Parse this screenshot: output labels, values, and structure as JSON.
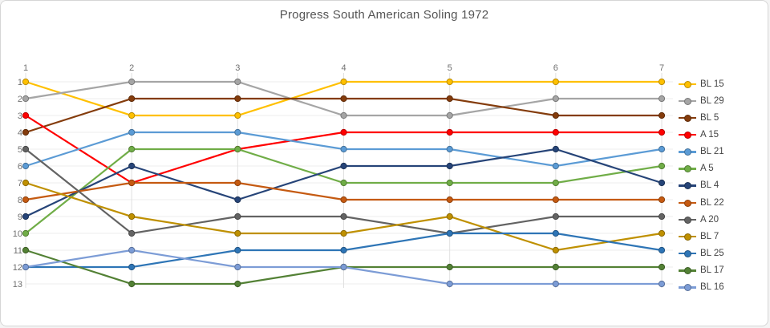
{
  "card": {
    "background": "#ffffff",
    "border_color": "#d6d6d6"
  },
  "chart_data": {
    "type": "line",
    "subtype": "bump-rank-progression",
    "title": "Progress South American Soling 1972",
    "title_color": "#555555",
    "x_axis": {
      "position": "top",
      "label": "",
      "ticks": [
        "1",
        "2",
        "3",
        "4",
        "5",
        "6",
        "7"
      ],
      "tick_color": "#707070"
    },
    "y_axis": {
      "label": "",
      "ticks": [
        "1",
        "2",
        "3",
        "4",
        "5",
        "6",
        "7",
        "8",
        "9",
        "10",
        "11",
        "12",
        "13"
      ],
      "range": [
        1,
        13
      ],
      "reversed": true,
      "tick_color": "#707070"
    },
    "grid": {
      "horizontal": true,
      "vertical": true,
      "h_color": "#ececec",
      "v_color": "#e0e0e0"
    },
    "legend": {
      "position": "right",
      "text_color": "#444444"
    },
    "categories": [
      1,
      2,
      3,
      4,
      5,
      6,
      7
    ],
    "series": [
      {
        "name": "BL 15",
        "color": "#FFC000",
        "values": [
          1,
          3,
          3,
          1,
          1,
          1,
          1
        ]
      },
      {
        "name": "BL 29",
        "color": "#A5A5A5",
        "values": [
          2,
          1,
          1,
          3,
          3,
          2,
          2
        ]
      },
      {
        "name": "BL 5",
        "color": "#843C0C",
        "values": [
          4,
          2,
          2,
          2,
          2,
          3,
          3
        ]
      },
      {
        "name": "A 15",
        "color": "#FF0000",
        "values": [
          3,
          7,
          5,
          4,
          4,
          4,
          4
        ]
      },
      {
        "name": "BL 21",
        "color": "#5B9BD5",
        "values": [
          6,
          4,
          4,
          5,
          5,
          6,
          5
        ]
      },
      {
        "name": "A 5",
        "color": "#70AD47",
        "values": [
          10,
          5,
          5,
          7,
          7,
          7,
          6
        ]
      },
      {
        "name": "BL 4",
        "color": "#264478",
        "values": [
          9,
          6,
          8,
          6,
          6,
          5,
          7
        ]
      },
      {
        "name": "BL 22",
        "color": "#C55A11",
        "values": [
          8,
          7,
          7,
          8,
          8,
          8,
          8
        ]
      },
      {
        "name": "A 20",
        "color": "#636363",
        "values": [
          5,
          10,
          9,
          9,
          10,
          9,
          9
        ]
      },
      {
        "name": "BL 7",
        "color": "#BF9000",
        "values": [
          7,
          9,
          10,
          10,
          9,
          11,
          10
        ]
      },
      {
        "name": "BL 25",
        "color": "#2E75B6",
        "values": [
          12,
          12,
          11,
          11,
          10,
          10,
          11
        ]
      },
      {
        "name": "BL 17",
        "color": "#538135",
        "values": [
          11,
          13,
          13,
          12,
          12,
          12,
          12
        ]
      },
      {
        "name": "BL 16",
        "color": "#7C9CD6",
        "values": [
          12,
          11,
          12,
          12,
          13,
          13,
          13
        ]
      }
    ]
  }
}
